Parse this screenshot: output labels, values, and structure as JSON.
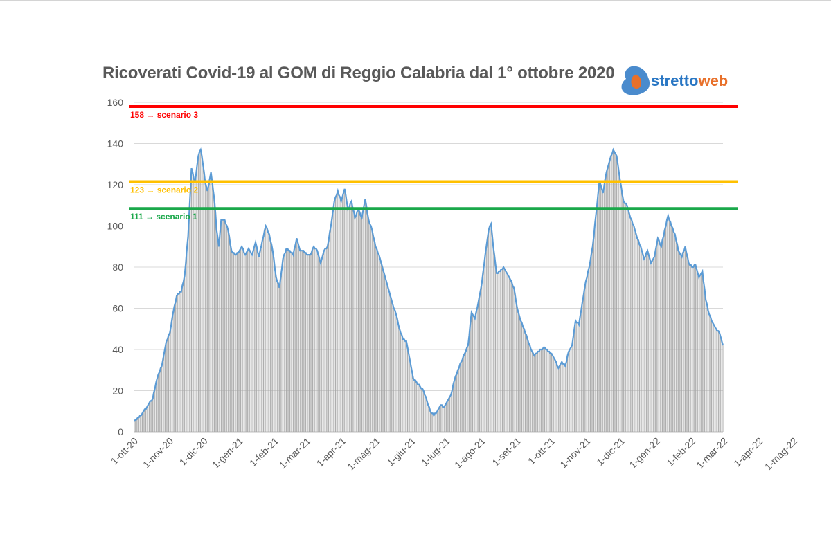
{
  "chart_data": {
    "type": "bar",
    "title": "Ricoverati Covid-19 al GOM di Reggio Calabria dal 1° ottobre 2020",
    "xlabel": "",
    "ylabel": "",
    "ylim": [
      0,
      160
    ],
    "yticks": [
      0,
      20,
      40,
      60,
      80,
      100,
      120,
      140,
      160
    ],
    "grid": "horizontal",
    "x_tick_labels": [
      "1-ott-20",
      "1-nov-20",
      "1-dic-20",
      "1-gen-21",
      "1-feb-21",
      "1-mar-21",
      "1-apr-21",
      "1-mag-21",
      "1-giu-21",
      "1-lug-21",
      "1-ago-21",
      "1-set-21",
      "1-ott-21",
      "1-nov-21",
      "1-dic-21",
      "1-gen-22",
      "1-feb-22",
      "1-mar-22",
      "1-apr-22",
      "1-mag-22"
    ],
    "x_tick_days": [
      0,
      31,
      61,
      92,
      123,
      151,
      182,
      212,
      243,
      273,
      304,
      335,
      365,
      396,
      426,
      457,
      488,
      516,
      547,
      577
    ],
    "series_keypoints": [
      [
        0,
        5
      ],
      [
        7,
        9
      ],
      [
        12,
        13
      ],
      [
        16,
        16
      ],
      [
        20,
        26
      ],
      [
        24,
        32
      ],
      [
        28,
        44
      ],
      [
        31,
        48
      ],
      [
        34,
        58
      ],
      [
        37,
        66
      ],
      [
        41,
        68
      ],
      [
        44,
        76
      ],
      [
        47,
        95
      ],
      [
        50,
        128
      ],
      [
        53,
        121
      ],
      [
        56,
        134
      ],
      [
        58,
        137
      ],
      [
        60,
        130
      ],
      [
        62,
        121
      ],
      [
        64,
        117
      ],
      [
        67,
        126
      ],
      [
        70,
        113
      ],
      [
        72,
        98
      ],
      [
        74,
        90
      ],
      [
        76,
        103
      ],
      [
        79,
        103
      ],
      [
        82,
        98
      ],
      [
        85,
        88
      ],
      [
        88,
        86
      ],
      [
        91,
        87
      ],
      [
        94,
        90
      ],
      [
        97,
        86
      ],
      [
        100,
        89
      ],
      [
        103,
        86
      ],
      [
        106,
        92
      ],
      [
        109,
        85
      ],
      [
        112,
        93
      ],
      [
        115,
        100
      ],
      [
        118,
        96
      ],
      [
        121,
        88
      ],
      [
        124,
        75
      ],
      [
        127,
        70
      ],
      [
        130,
        84
      ],
      [
        133,
        89
      ],
      [
        136,
        88
      ],
      [
        139,
        86
      ],
      [
        142,
        94
      ],
      [
        145,
        88
      ],
      [
        148,
        88
      ],
      [
        151,
        86
      ],
      [
        154,
        86
      ],
      [
        157,
        90
      ],
      [
        160,
        88
      ],
      [
        163,
        82
      ],
      [
        166,
        88
      ],
      [
        169,
        90
      ],
      [
        172,
        100
      ],
      [
        175,
        112
      ],
      [
        178,
        117
      ],
      [
        181,
        112
      ],
      [
        184,
        118
      ],
      [
        187,
        108
      ],
      [
        190,
        112
      ],
      [
        193,
        104
      ],
      [
        196,
        108
      ],
      [
        199,
        104
      ],
      [
        202,
        113
      ],
      [
        205,
        103
      ],
      [
        208,
        98
      ],
      [
        211,
        90
      ],
      [
        214,
        86
      ],
      [
        217,
        80
      ],
      [
        220,
        74
      ],
      [
        223,
        68
      ],
      [
        226,
        62
      ],
      [
        229,
        57
      ],
      [
        232,
        50
      ],
      [
        235,
        45
      ],
      [
        238,
        44
      ],
      [
        241,
        35
      ],
      [
        244,
        26
      ],
      [
        247,
        24
      ],
      [
        250,
        22
      ],
      [
        253,
        20
      ],
      [
        256,
        15
      ],
      [
        259,
        10
      ],
      [
        262,
        8
      ],
      [
        265,
        10
      ],
      [
        268,
        13
      ],
      [
        271,
        12
      ],
      [
        274,
        15
      ],
      [
        277,
        18
      ],
      [
        280,
        25
      ],
      [
        283,
        30
      ],
      [
        286,
        34
      ],
      [
        289,
        38
      ],
      [
        292,
        42
      ],
      [
        295,
        58
      ],
      [
        298,
        55
      ],
      [
        301,
        63
      ],
      [
        304,
        72
      ],
      [
        307,
        86
      ],
      [
        310,
        98
      ],
      [
        312,
        101
      ],
      [
        314,
        90
      ],
      [
        317,
        77
      ],
      [
        320,
        78
      ],
      [
        323,
        80
      ],
      [
        326,
        77
      ],
      [
        329,
        74
      ],
      [
        332,
        70
      ],
      [
        335,
        60
      ],
      [
        338,
        54
      ],
      [
        341,
        50
      ],
      [
        344,
        45
      ],
      [
        347,
        40
      ],
      [
        350,
        37
      ],
      [
        353,
        39
      ],
      [
        356,
        40
      ],
      [
        359,
        41
      ],
      [
        362,
        39
      ],
      [
        365,
        38
      ],
      [
        368,
        35
      ],
      [
        371,
        31
      ],
      [
        374,
        34
      ],
      [
        377,
        32
      ],
      [
        380,
        39
      ],
      [
        383,
        42
      ],
      [
        386,
        54
      ],
      [
        389,
        52
      ],
      [
        392,
        63
      ],
      [
        395,
        73
      ],
      [
        398,
        80
      ],
      [
        401,
        90
      ],
      [
        404,
        106
      ],
      [
        407,
        122
      ],
      [
        410,
        116
      ],
      [
        413,
        126
      ],
      [
        416,
        132
      ],
      [
        419,
        137
      ],
      [
        422,
        134
      ],
      [
        425,
        122
      ],
      [
        428,
        112
      ],
      [
        431,
        110
      ],
      [
        434,
        104
      ],
      [
        437,
        100
      ],
      [
        440,
        94
      ],
      [
        443,
        90
      ],
      [
        446,
        84
      ],
      [
        449,
        88
      ],
      [
        452,
        82
      ],
      [
        455,
        85
      ],
      [
        458,
        94
      ],
      [
        461,
        90
      ],
      [
        464,
        98
      ],
      [
        467,
        105
      ],
      [
        470,
        100
      ],
      [
        473,
        96
      ],
      [
        476,
        88
      ],
      [
        479,
        85
      ],
      [
        482,
        90
      ],
      [
        485,
        82
      ],
      [
        488,
        80
      ],
      [
        491,
        81
      ],
      [
        494,
        75
      ],
      [
        497,
        78
      ],
      [
        500,
        64
      ],
      [
        503,
        57
      ],
      [
        506,
        53
      ],
      [
        509,
        50
      ],
      [
        512,
        48
      ],
      [
        515,
        42
      ]
    ],
    "reference_lines": [
      {
        "value": 158,
        "label": "158 → scenario 3",
        "color": "#ff0000"
      },
      {
        "value": 121.5,
        "label": "123 → scenario 2",
        "color": "#ffc000"
      },
      {
        "value": 108.5,
        "label": "111 → scenario 1",
        "color": "#1aa84a"
      }
    ],
    "bar_color": "#a6a6a6",
    "line_color": "#5b9bd5"
  },
  "logo": {
    "text_part1": "stretto",
    "text_part2": "web"
  }
}
